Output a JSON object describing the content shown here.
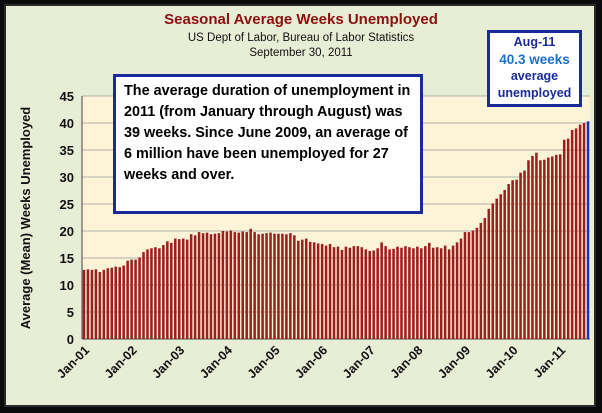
{
  "chart_data": {
    "type": "bar",
    "title": "Seasonal Average Weeks Unemployed",
    "subtitle_1": "US Dept of Labor, Bureau of Labor Statistics",
    "subtitle_2": "September 30, 2011",
    "ylabel": "Average (Mean) Weeks Unemployed",
    "xlabel": "",
    "ylim": [
      0,
      45
    ],
    "yticks": [
      0,
      5,
      10,
      15,
      20,
      25,
      30,
      35,
      40,
      45
    ],
    "xtick_labels": [
      "Jan-01",
      "Jan-02",
      "Jan-03",
      "Jan-04",
      "Jan-05",
      "Jan-06",
      "Jan-07",
      "Jan-08",
      "Jan-09",
      "Jan-10",
      "Jan-11"
    ],
    "grid": true,
    "bar_color": "#9b1f1f",
    "highlight_color": "#1a2fc0",
    "start_month": "Jan-01",
    "values": [
      12.8,
      12.9,
      12.8,
      12.9,
      12.4,
      12.8,
      13.1,
      13.2,
      13.4,
      13.3,
      13.6,
      14.5,
      14.7,
      14.7,
      15.1,
      16.1,
      16.6,
      16.8,
      17.0,
      16.8,
      17.4,
      18.1,
      17.8,
      18.6,
      18.5,
      18.6,
      18.4,
      19.4,
      19.2,
      19.8,
      19.6,
      19.7,
      19.4,
      19.5,
      19.6,
      20.0,
      19.9,
      20.1,
      19.8,
      19.7,
      19.9,
      19.8,
      20.4,
      19.8,
      19.4,
      19.5,
      19.6,
      19.7,
      19.5,
      19.5,
      19.5,
      19.4,
      19.6,
      19.2,
      18.2,
      18.4,
      18.6,
      18.0,
      17.9,
      17.7,
      17.6,
      17.3,
      17.6,
      17.0,
      17.1,
      16.5,
      17.1,
      16.9,
      17.2,
      17.2,
      17.0,
      16.6,
      16.3,
      16.4,
      16.8,
      17.9,
      17.2,
      16.6,
      16.7,
      17.1,
      16.9,
      17.2,
      17.0,
      16.8,
      17.1,
      16.8,
      17.2,
      17.8,
      16.9,
      17.0,
      16.8,
      17.3,
      16.6,
      17.3,
      17.9,
      18.6,
      19.8,
      19.8,
      20.1,
      20.6,
      21.5,
      22.4,
      24.1,
      25.1,
      26.0,
      26.8,
      27.6,
      28.7,
      29.4,
      29.5,
      30.8,
      31.2,
      33.1,
      33.9,
      34.5,
      33.1,
      33.2,
      33.6,
      33.8,
      34.1,
      34.2,
      36.9,
      37.1,
      38.7,
      39.0,
      39.7,
      40.0,
      40.3
    ],
    "highlight_last": true
  },
  "callout": {
    "text": "The average duration of unemployment in 2011 (from January through August) was 39 weeks. Since June 2009, an average of  6 million have been unemployed for 27 weeks and over."
  },
  "badge": {
    "month": "Aug-11",
    "value": "40.3 weeks",
    "line3": "average",
    "line4": "unemployed"
  }
}
